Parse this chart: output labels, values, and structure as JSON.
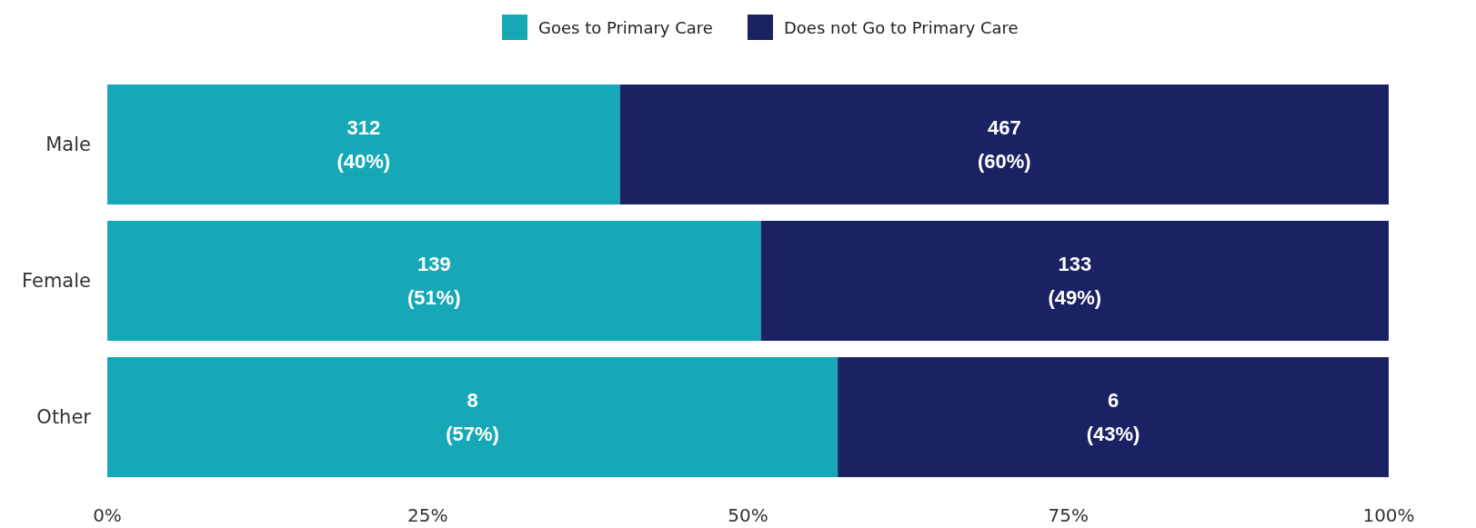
{
  "chart_data": {
    "type": "bar",
    "orientation": "horizontal",
    "stacked": true,
    "categories": [
      "Male",
      "Female",
      "Other"
    ],
    "series": [
      {
        "name": "Goes to Primary Care",
        "color": "#16a8b6",
        "values": [
          40,
          51,
          57
        ],
        "value_labels": [
          "312\n(40%)",
          "139\n(51%)",
          "8\n(57%)"
        ]
      },
      {
        "name": "Does not Go to Primary Care",
        "color": "#1b2263",
        "values": [
          60,
          49,
          43
        ],
        "value_labels": [
          "467\n(60%)",
          "133\n(49%)",
          "6\n(43%)"
        ]
      }
    ],
    "xlim": [
      0,
      100
    ],
    "xticks": [
      {
        "value": 0,
        "label": "0%"
      },
      {
        "value": 25,
        "label": "25%"
      },
      {
        "value": 50,
        "label": "50%"
      },
      {
        "value": 75,
        "label": "75%"
      },
      {
        "value": 100,
        "label": "100%"
      }
    ],
    "legend": "top",
    "grid": false
  }
}
